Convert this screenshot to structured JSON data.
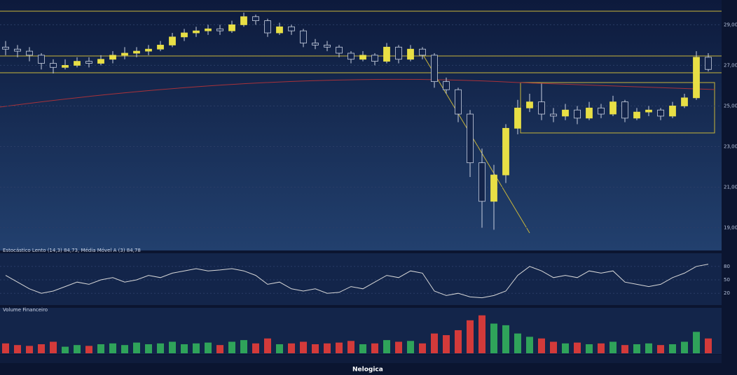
{
  "chart_data": [
    {
      "type": "candlestick",
      "ylim": [
        18.5,
        29.6
      ],
      "yticks": [
        {
          "value": 19,
          "label": "19,00"
        },
        {
          "value": 21,
          "label": "21,00"
        },
        {
          "value": 23,
          "label": "23,00"
        },
        {
          "value": 25,
          "label": "25,00"
        },
        {
          "value": 27,
          "label": "27,00"
        },
        {
          "value": 29,
          "label": "29,00"
        }
      ],
      "up_color": "#e8df45",
      "down_color": "#13244a",
      "series": [
        {
          "name": "Preço",
          "values": [
            [
              27.9,
              28.2,
              27.5,
              27.8
            ],
            [
              27.8,
              28.0,
              27.4,
              27.7
            ],
            [
              27.7,
              27.9,
              27.2,
              27.5
            ],
            [
              27.5,
              27.6,
              26.8,
              27.1
            ],
            [
              27.1,
              27.3,
              26.6,
              26.9
            ],
            [
              26.9,
              27.3,
              26.8,
              27.0
            ],
            [
              27.0,
              27.4,
              26.9,
              27.2
            ],
            [
              27.2,
              27.4,
              26.9,
              27.1
            ],
            [
              27.1,
              27.5,
              27.0,
              27.3
            ],
            [
              27.3,
              27.7,
              27.1,
              27.5
            ],
            [
              27.5,
              27.9,
              27.3,
              27.6
            ],
            [
              27.6,
              27.9,
              27.4,
              27.7
            ],
            [
              27.7,
              28.0,
              27.5,
              27.8
            ],
            [
              27.8,
              28.2,
              27.7,
              28.0
            ],
            [
              28.0,
              28.6,
              27.9,
              28.4
            ],
            [
              28.4,
              28.8,
              28.2,
              28.6
            ],
            [
              28.6,
              28.9,
              28.4,
              28.7
            ],
            [
              28.7,
              29.0,
              28.5,
              28.8
            ],
            [
              28.8,
              29.0,
              28.5,
              28.7
            ],
            [
              28.7,
              29.2,
              28.6,
              29.0
            ],
            [
              29.0,
              29.6,
              28.9,
              29.4
            ],
            [
              29.4,
              29.5,
              29.0,
              29.2
            ],
            [
              29.2,
              29.3,
              28.4,
              28.6
            ],
            [
              28.6,
              29.1,
              28.5,
              28.9
            ],
            [
              28.9,
              29.0,
              28.5,
              28.7
            ],
            [
              28.7,
              28.8,
              27.9,
              28.1
            ],
            [
              28.1,
              28.3,
              27.8,
              28.0
            ],
            [
              28.0,
              28.2,
              27.7,
              27.9
            ],
            [
              27.9,
              28.0,
              27.4,
              27.6
            ],
            [
              27.6,
              27.7,
              27.1,
              27.3
            ],
            [
              27.3,
              27.7,
              27.2,
              27.5
            ],
            [
              27.5,
              27.6,
              27.0,
              27.2
            ],
            [
              27.2,
              28.1,
              27.1,
              27.9
            ],
            [
              27.9,
              28.0,
              27.1,
              27.3
            ],
            [
              27.3,
              28.0,
              27.2,
              27.8
            ],
            [
              27.8,
              27.9,
              27.3,
              27.5
            ],
            [
              27.5,
              27.6,
              25.9,
              26.2
            ],
            [
              26.2,
              26.4,
              25.6,
              25.8
            ],
            [
              25.8,
              25.9,
              24.2,
              24.6
            ],
            [
              24.6,
              24.8,
              21.5,
              22.2
            ],
            [
              22.2,
              22.9,
              19.0,
              20.3
            ],
            [
              20.3,
              22.1,
              18.9,
              21.6
            ],
            [
              21.6,
              24.1,
              21.2,
              23.9
            ],
            [
              23.9,
              25.3,
              23.6,
              24.9
            ],
            [
              24.9,
              25.6,
              24.7,
              25.2
            ],
            [
              25.2,
              26.1,
              24.3,
              24.6
            ],
            [
              24.6,
              24.9,
              24.2,
              24.5
            ],
            [
              24.5,
              25.1,
              24.3,
              24.8
            ],
            [
              24.8,
              25.0,
              24.1,
              24.4
            ],
            [
              24.4,
              25.2,
              24.3,
              24.9
            ],
            [
              24.9,
              25.1,
              24.4,
              24.6
            ],
            [
              24.6,
              25.5,
              24.5,
              25.2
            ],
            [
              25.2,
              25.3,
              24.2,
              24.4
            ],
            [
              24.4,
              24.9,
              24.3,
              24.7
            ],
            [
              24.7,
              25.0,
              24.5,
              24.8
            ],
            [
              24.8,
              24.9,
              24.3,
              24.5
            ],
            [
              24.5,
              25.2,
              24.4,
              25.0
            ],
            [
              25.0,
              25.6,
              24.9,
              25.4
            ],
            [
              25.4,
              27.7,
              25.3,
              27.4
            ],
            [
              27.4,
              27.6,
              26.7,
              26.8
            ]
          ]
        }
      ]
    },
    {
      "type": "line",
      "title": "Estocástico Lento (14,3) 84,73, Média Móvel A (3) 84,78",
      "ylim": [
        0,
        100
      ],
      "yticks": [
        20,
        50,
        80
      ],
      "series": [
        {
          "name": "Estocástico",
          "color": "#d8d8d8",
          "values": [
            60,
            45,
            30,
            20,
            25,
            35,
            45,
            40,
            50,
            55,
            45,
            50,
            60,
            55,
            65,
            70,
            75,
            70,
            72,
            75,
            70,
            60,
            40,
            45,
            30,
            25,
            30,
            20,
            22,
            35,
            30,
            45,
            60,
            55,
            70,
            65,
            25,
            15,
            20,
            12,
            10,
            15,
            25,
            60,
            80,
            70,
            55,
            60,
            55,
            70,
            65,
            70,
            45,
            40,
            35,
            40,
            55,
            65,
            80,
            85
          ]
        }
      ]
    },
    {
      "type": "bar",
      "title": "Volume Financeiro",
      "ylim": [
        0,
        250
      ],
      "up_color": "#2fa35a",
      "down_color": "#d33a3a",
      "values": [
        60,
        50,
        45,
        55,
        70,
        40,
        50,
        45,
        55,
        60,
        50,
        65,
        55,
        60,
        70,
        55,
        60,
        65,
        50,
        70,
        80,
        60,
        90,
        55,
        60,
        70,
        55,
        60,
        65,
        75,
        55,
        60,
        80,
        70,
        75,
        60,
        120,
        110,
        140,
        200,
        230,
        180,
        170,
        120,
        100,
        90,
        70,
        60,
        65,
        55,
        60,
        70,
        50,
        55,
        60,
        50,
        55,
        70,
        130,
        90
      ]
    }
  ]
}
